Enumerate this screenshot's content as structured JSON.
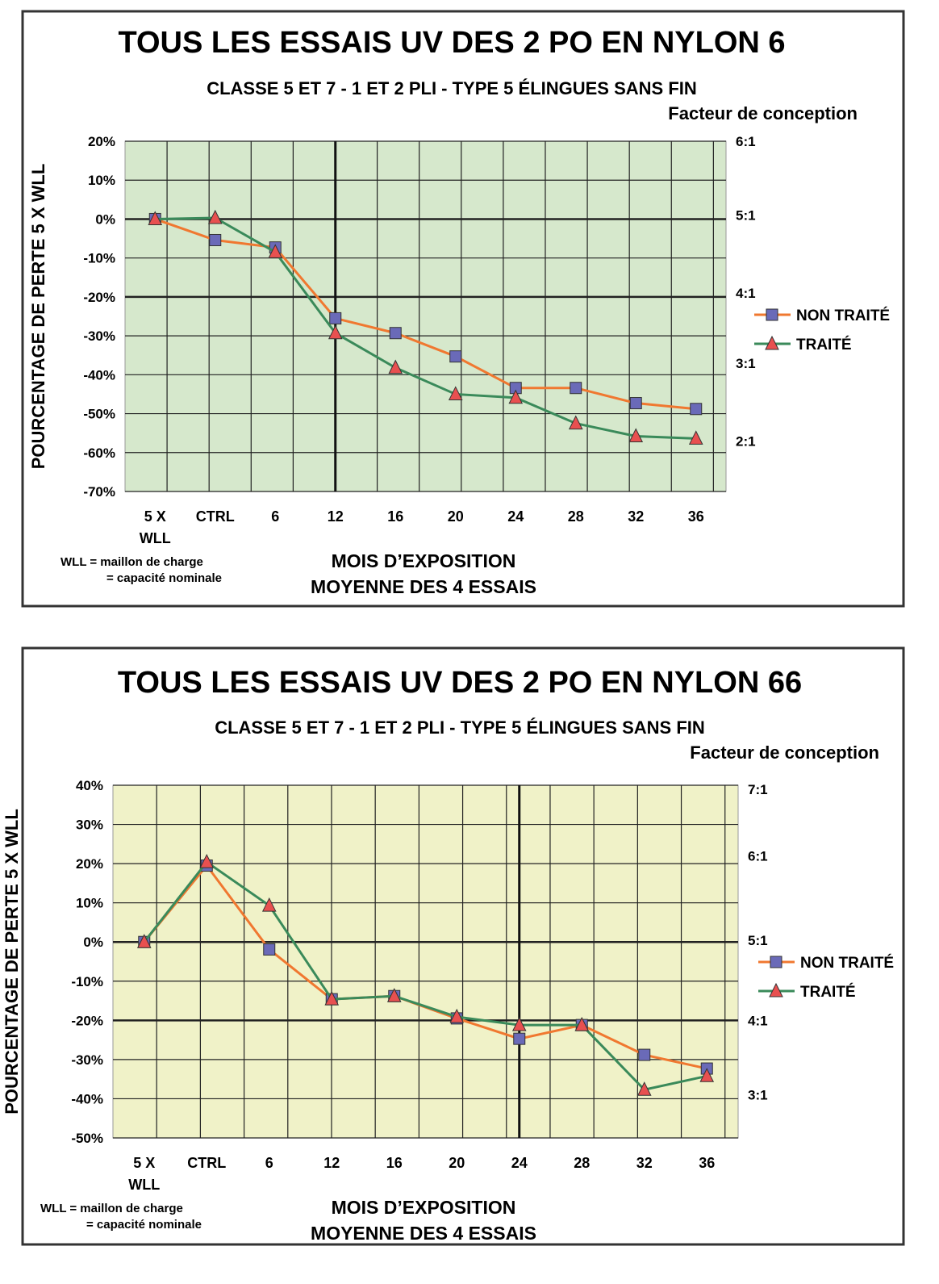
{
  "chart_data": [
    {
      "type": "line",
      "title": "TOUS LES ESSAIS UV DES 2 PO EN NYLON 6",
      "subtitle": "CLASSE 5 ET 7 - 1 ET 2 PLI - TYPE 5 ÉLINGUES SANS FIN",
      "right_axis_title": "Facteur de conception",
      "xlabel": "MOIS D’EXPOSITION",
      "xlabel2": "MOYENNE DES 4 ESSAIS",
      "ylabel": "POURCENTAGE DE PERTE 5 X WLL",
      "note1": "WLL = maillon de charge",
      "note2": "= capacité nominale",
      "categories": [
        "5 X|WLL",
        "CTRL",
        "6",
        "12",
        "16",
        "20",
        "24",
        "28",
        "32",
        "36"
      ],
      "ylim": [
        -70,
        20
      ],
      "yticks": [
        "20%",
        "10%",
        "0%",
        "-10%",
        "-20%",
        "-30%",
        "-40%",
        "-50%",
        "-60%",
        "-70%"
      ],
      "right_axis": [
        {
          "label": "6:1",
          "at": 20
        },
        {
          "label": "5:1",
          "at": 1
        },
        {
          "label": "4:1",
          "at": -19
        },
        {
          "label": "3:1",
          "at": -37
        },
        {
          "label": "2:1",
          "at": -57
        }
      ],
      "plot_bg": "#d6e8cc",
      "grid": true,
      "legend": "right",
      "series": [
        {
          "name": "NON TRAITÉ",
          "marker": "square",
          "line_color": "#f07830",
          "marker_color": "#6a6ab8",
          "values": [
            0,
            -5.4,
            -7.3,
            -25.5,
            -29.3,
            -35.3,
            -43.4,
            -43.4,
            -47.3,
            -48.8
          ]
        },
        {
          "name": "TRAITÉ",
          "marker": "triangle",
          "line_color": "#3a8a5a",
          "marker_color": "#e85050",
          "values": [
            0,
            0.3,
            -8.5,
            -29.3,
            -38.2,
            -45,
            -45.9,
            -52.5,
            -55.8,
            -56.4
          ]
        }
      ]
    },
    {
      "type": "line",
      "title": "TOUS LES ESSAIS UV DES 2 PO EN NYLON 66",
      "subtitle": "CLASSE 5 ET 7 - 1 ET 2 PLI - TYPE 5 ÉLINGUES SANS FIN",
      "right_axis_title": "Facteur de conception",
      "xlabel": "MOIS D’EXPOSITION",
      "xlabel2": "MOYENNE DES 4 ESSAIS",
      "ylabel": "POURCENTAGE DE PERTE 5 X WLL",
      "note1": "WLL = maillon de charge",
      "note2": "= capacité nominale",
      "categories": [
        "5 X|WLL",
        "CTRL",
        "6",
        "12",
        "16",
        "20",
        "24",
        "28",
        "32",
        "36"
      ],
      "ylim": [
        -50,
        40
      ],
      "yticks": [
        "40%",
        "30%",
        "20%",
        "10%",
        "0%",
        "-10%",
        "-20%",
        "-30%",
        "-40%",
        "-50%"
      ],
      "right_axis": [
        {
          "label": "7:1",
          "at": 39
        },
        {
          "label": "6:1",
          "at": 22
        },
        {
          "label": "5:1",
          "at": 0.5
        },
        {
          "label": "4:1",
          "at": -20
        },
        {
          "label": "3:1",
          "at": -39
        }
      ],
      "plot_bg": "#f0f2c8",
      "grid": true,
      "legend": "right",
      "series": [
        {
          "name": "NON TRAITÉ",
          "marker": "square",
          "line_color": "#f07830",
          "marker_color": "#6a6ab8",
          "values": [
            0,
            19.5,
            -1.9,
            -14.6,
            -13.8,
            -19.5,
            -24.7,
            -21.2,
            -28.8,
            -32.3
          ]
        },
        {
          "name": "TRAITÉ",
          "marker": "triangle",
          "line_color": "#3a8a5a",
          "marker_color": "#e85050",
          "values": [
            0,
            20.4,
            9.3,
            -14.6,
            -13.8,
            -19.1,
            -21.2,
            -21.2,
            -37.7,
            -34.2
          ]
        }
      ]
    }
  ]
}
